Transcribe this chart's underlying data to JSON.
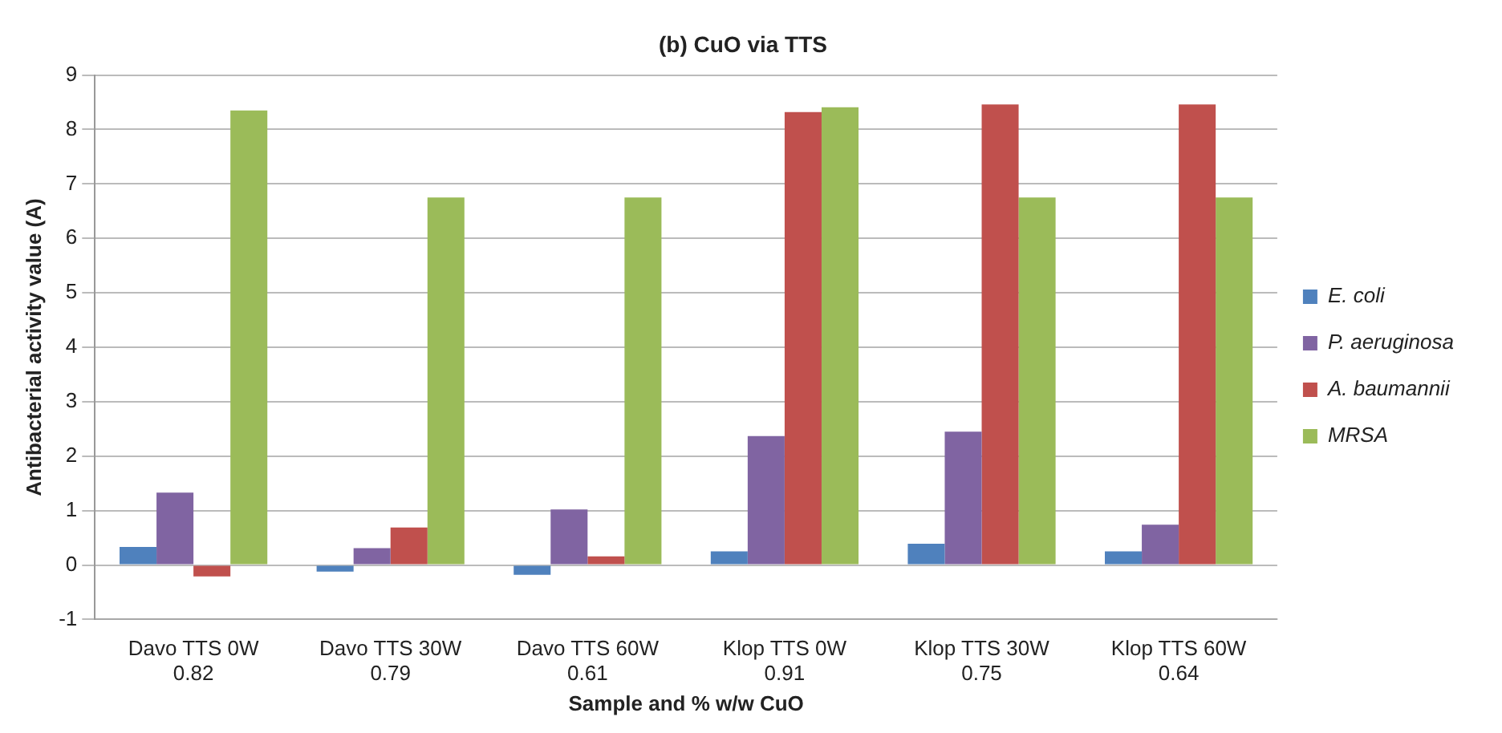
{
  "chart_data": {
    "type": "bar",
    "title": "(b) CuO via TTS",
    "xlabel": "Sample and % w/w CuO",
    "ylabel": "Antibacterial activity value (A)",
    "categories": [
      "Davo TTS 0W\n0.82",
      "Davo TTS 30W\n0.79",
      "Davo TTS 60W\n0.61",
      "Klop TTS 0W\n0.91",
      "Klop TTS 30W\n0.75",
      "Klop TTS 60W\n0.64"
    ],
    "series": [
      {
        "name": "E. coli",
        "color": "#4f81bd",
        "values": [
          0.33,
          -0.12,
          -0.18,
          0.25,
          0.39,
          0.25
        ]
      },
      {
        "name": "P. aeruginosa",
        "color": "#8064a2",
        "values": [
          1.33,
          0.31,
          1.02,
          2.37,
          2.45,
          0.74
        ]
      },
      {
        "name": "A. baumannii",
        "color": "#c0504d",
        "values": [
          -0.21,
          0.69,
          0.16,
          8.32,
          8.46,
          8.46
        ]
      },
      {
        "name": "MRSA",
        "color": "#9bbb59",
        "values": [
          8.35,
          6.75,
          6.75,
          8.41,
          6.75,
          6.75
        ]
      }
    ],
    "ylim": [
      -1,
      9
    ],
    "yticks": [
      -1,
      0,
      1,
      2,
      3,
      4,
      5,
      6,
      7,
      8,
      9
    ],
    "grid": "y",
    "legend": "right"
  }
}
